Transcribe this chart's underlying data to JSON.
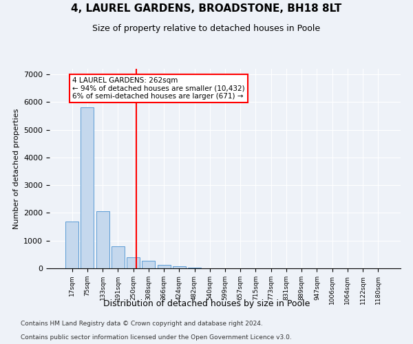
{
  "title1": "4, LAUREL GARDENS, BROADSTONE, BH18 8LT",
  "title2": "Size of property relative to detached houses in Poole",
  "xlabel": "Distribution of detached houses by size in Poole",
  "ylabel": "Number of detached properties",
  "bar_labels": [
    "17sqm",
    "75sqm",
    "133sqm",
    "191sqm",
    "250sqm",
    "308sqm",
    "366sqm",
    "424sqm",
    "482sqm",
    "540sqm",
    "599sqm",
    "657sqm",
    "715sqm",
    "773sqm",
    "831sqm",
    "889sqm",
    "947sqm",
    "1006sqm",
    "1064sqm",
    "1122sqm",
    "1180sqm"
  ],
  "bar_values": [
    1700,
    5800,
    2050,
    800,
    400,
    280,
    130,
    80,
    15,
    0,
    0,
    0,
    0,
    0,
    0,
    0,
    0,
    0,
    0,
    0,
    0
  ],
  "bar_color": "#c5d8ed",
  "bar_edge_color": "#5b9bd5",
  "vline_color": "red",
  "annotation_box_text": "4 LAUREL GARDENS: 262sqm\n← 94% of detached houses are smaller (10,432)\n6% of semi-detached houses are larger (671) →",
  "ylim": [
    0,
    7200
  ],
  "yticks": [
    0,
    1000,
    2000,
    3000,
    4000,
    5000,
    6000,
    7000
  ],
  "footnote1": "Contains HM Land Registry data © Crown copyright and database right 2024.",
  "footnote2": "Contains public sector information licensed under the Open Government Licence v3.0.",
  "bg_color": "#eef2f8",
  "plot_bg_color": "#eef2f8"
}
